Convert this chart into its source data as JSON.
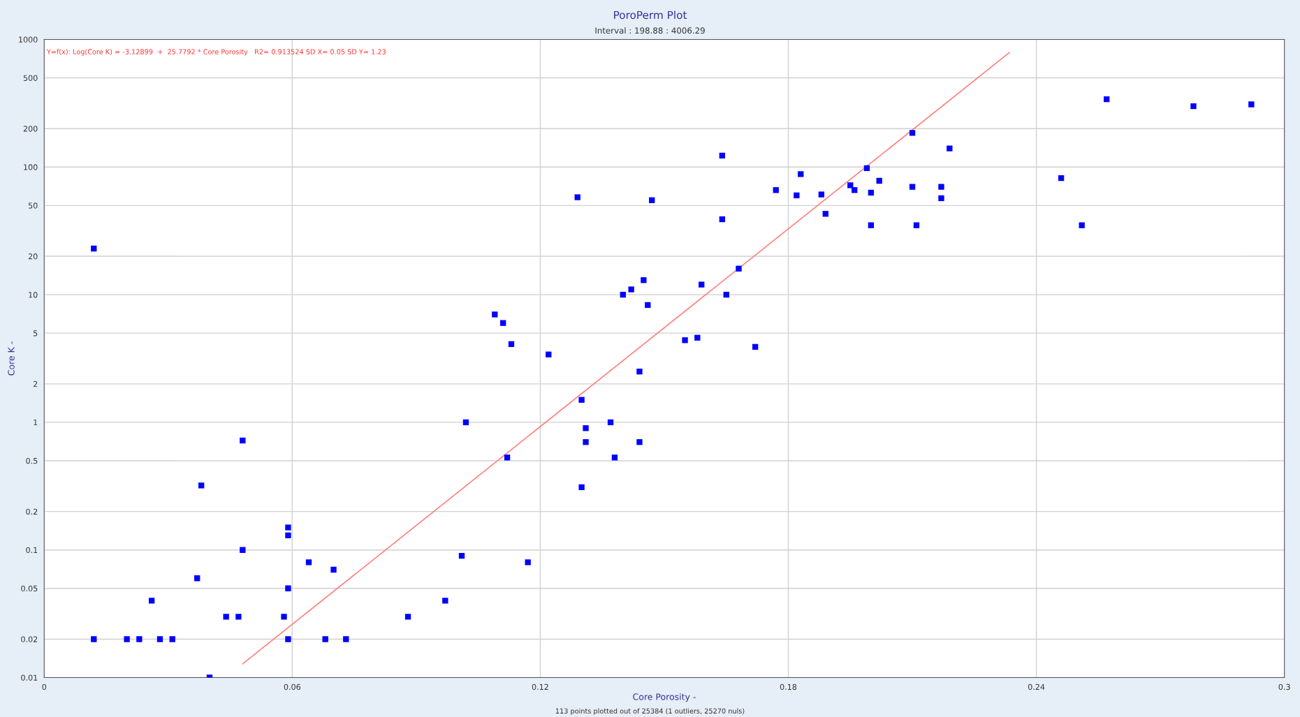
{
  "chart_data": {
    "type": "scatter",
    "title": "PoroPerm Plot",
    "subtitle": "Interval : 198.88 : 4006.29",
    "xlabel": "Core Porosity -",
    "ylabel": "Core K -",
    "annotations": [
      "Y=f(x): Log(Core K) = -3.12899  +  25.7792 * Core Porosity   R2= 0.913524 SD X= 0.05 SD Y= 1.23",
      "113 points plotted out of 25384 (1 outliers, 25270 nuls)"
    ],
    "log": "y",
    "grid": true,
    "xlim": [
      0,
      0.3
    ],
    "xticks": [
      0,
      0.06,
      0.12,
      0.18,
      0.24,
      0.3
    ],
    "ylim": [
      0.01,
      1000
    ],
    "yticks": [
      0.01,
      0.02,
      0.05,
      0.1,
      0.2,
      0.5,
      1,
      2,
      5,
      10,
      20,
      50,
      100,
      200,
      500,
      1000
    ],
    "series": [
      {
        "marker": "square",
        "color": "#0000ff",
        "x": [
          0.012,
          0.012,
          0.02,
          0.023,
          0.026,
          0.028,
          0.031,
          0.037,
          0.038,
          0.04,
          0.044,
          0.047,
          0.048,
          0.048,
          0.058,
          0.059,
          0.059,
          0.059,
          0.059,
          0.064,
          0.068,
          0.07,
          0.073,
          0.088,
          0.097,
          0.101,
          0.102,
          0.109,
          0.111,
          0.112,
          0.113,
          0.117,
          0.122,
          0.129,
          0.13,
          0.13,
          0.131,
          0.131,
          0.137,
          0.138,
          0.14,
          0.142,
          0.144,
          0.144,
          0.145,
          0.146,
          0.147,
          0.155,
          0.158,
          0.159,
          0.164,
          0.164,
          0.165,
          0.168,
          0.172,
          0.177,
          0.182,
          0.183,
          0.188,
          0.189,
          0.195,
          0.196,
          0.199,
          0.2,
          0.2,
          0.202,
          0.21,
          0.21,
          0.211,
          0.217,
          0.217,
          0.219,
          0.246,
          0.251,
          0.257,
          0.278,
          0.292
        ],
        "values": [
          23,
          0.02,
          0.02,
          0.02,
          0.04,
          0.02,
          0.02,
          0.06,
          0.32,
          0.01,
          0.03,
          0.03,
          0.72,
          0.1,
          0.03,
          0.15,
          0.13,
          0.05,
          0.02,
          0.08,
          0.02,
          0.07,
          0.02,
          0.03,
          0.04,
          0.09,
          1.0,
          7,
          6,
          0.53,
          4.1,
          0.08,
          3.4,
          58,
          1.5,
          0.31,
          0.9,
          0.7,
          1.0,
          0.53,
          10,
          11,
          2.5,
          0.7,
          13,
          8.3,
          55,
          4.4,
          4.6,
          12,
          123,
          39,
          10,
          16,
          3.9,
          66,
          60,
          88,
          61,
          43,
          72,
          66,
          98,
          63,
          35,
          78,
          185,
          70,
          35,
          70,
          57,
          140,
          82,
          35,
          340,
          300,
          310
        ]
      },
      {
        "type": "line",
        "color": "#ff7f7f",
        "x": [
          0.048,
          0.2335
        ],
        "values": [
          0.0128,
          790
        ]
      }
    ]
  }
}
